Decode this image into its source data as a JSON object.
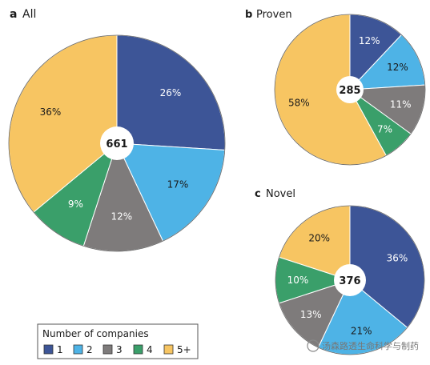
{
  "chart_data": [
    {
      "type": "pie",
      "panel": "a",
      "title": "All",
      "total": "661",
      "categories": [
        "1",
        "2",
        "3",
        "4",
        "5+"
      ],
      "values": [
        26,
        17,
        12,
        9,
        36
      ],
      "labels": [
        "26%",
        "17%",
        "12%",
        "9%",
        "36%"
      ]
    },
    {
      "type": "pie",
      "panel": "b",
      "title": "Proven",
      "total": "285",
      "categories": [
        "1",
        "2",
        "3",
        "4",
        "5+"
      ],
      "values": [
        12,
        12,
        11,
        7,
        58
      ],
      "labels": [
        "12%",
        "12%",
        "11%",
        "7%",
        "58%"
      ]
    },
    {
      "type": "pie",
      "panel": "c",
      "title": "Novel",
      "total": "376",
      "categories": [
        "1",
        "2",
        "3",
        "4",
        "5+"
      ],
      "values": [
        36,
        21,
        13,
        10,
        20
      ],
      "labels": [
        "36%",
        "21%",
        "13%",
        "10%",
        "20%"
      ]
    }
  ],
  "legend": {
    "title": "Number of companies",
    "items": [
      "1",
      "2",
      "3",
      "4",
      "5+"
    ]
  },
  "colors": [
    "#3d5597",
    "#4eb3e6",
    "#7e7b7b",
    "#3a9f6a",
    "#f7c562"
  ],
  "label_colors": [
    "#ffffff",
    "#1a1a1a",
    "#ffffff",
    "#ffffff",
    "#1a1a1a"
  ],
  "watermark": "汤森路透生命科学与制药"
}
